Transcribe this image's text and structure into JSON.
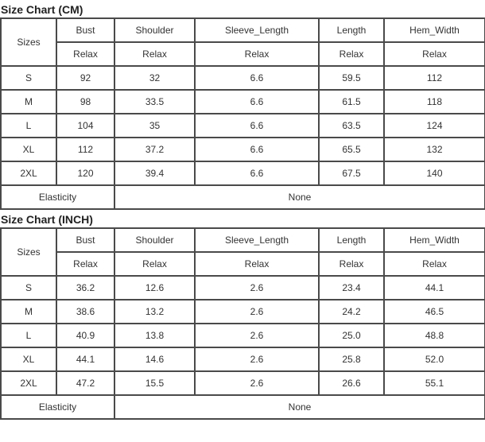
{
  "charts": [
    {
      "title": "Size Chart (CM)",
      "sizes_label": "Sizes",
      "columns": [
        "Bust",
        "Shoulder",
        "Sleeve_Length",
        "Length",
        "Hem_Width"
      ],
      "sub_labels": [
        "Relax",
        "Relax",
        "Relax",
        "Relax",
        "Relax"
      ],
      "rows": [
        {
          "size": "S",
          "values": [
            "92",
            "32",
            "6.6",
            "59.5",
            "112"
          ]
        },
        {
          "size": "M",
          "values": [
            "98",
            "33.5",
            "6.6",
            "61.5",
            "118"
          ]
        },
        {
          "size": "L",
          "values": [
            "104",
            "35",
            "6.6",
            "63.5",
            "124"
          ]
        },
        {
          "size": "XL",
          "values": [
            "112",
            "37.2",
            "6.6",
            "65.5",
            "132"
          ]
        },
        {
          "size": "2XL",
          "values": [
            "120",
            "39.4",
            "6.6",
            "67.5",
            "140"
          ]
        }
      ],
      "elasticity_label": "Elasticity",
      "elasticity_value": "None"
    },
    {
      "title": "Size Chart (INCH)",
      "sizes_label": "Sizes",
      "columns": [
        "Bust",
        "Shoulder",
        "Sleeve_Length",
        "Length",
        "Hem_Width"
      ],
      "sub_labels": [
        "Relax",
        "Relax",
        "Relax",
        "Relax",
        "Relax"
      ],
      "rows": [
        {
          "size": "S",
          "values": [
            "36.2",
            "12.6",
            "2.6",
            "23.4",
            "44.1"
          ]
        },
        {
          "size": "M",
          "values": [
            "38.6",
            "13.2",
            "2.6",
            "24.2",
            "46.5"
          ]
        },
        {
          "size": "L",
          "values": [
            "40.9",
            "13.8",
            "2.6",
            "25.0",
            "48.8"
          ]
        },
        {
          "size": "XL",
          "values": [
            "44.1",
            "14.6",
            "2.6",
            "25.8",
            "52.0"
          ]
        },
        {
          "size": "2XL",
          "values": [
            "47.2",
            "15.5",
            "2.6",
            "26.6",
            "55.1"
          ]
        }
      ],
      "elasticity_label": "Elasticity",
      "elasticity_value": "None"
    }
  ]
}
